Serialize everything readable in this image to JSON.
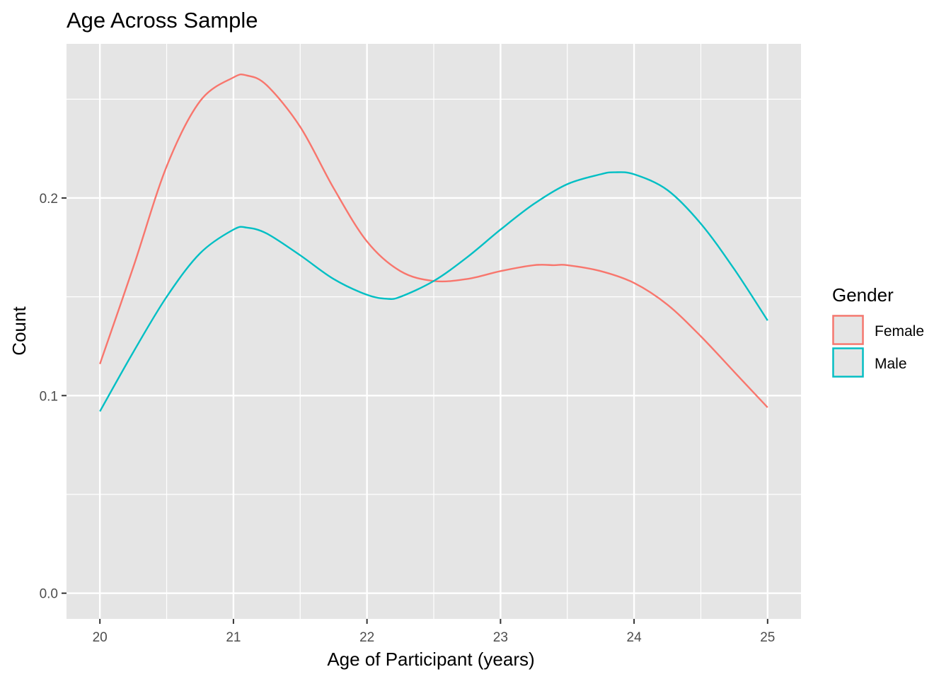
{
  "chart_data": {
    "type": "line",
    "title": "Age Across Sample",
    "xlabel": "Age of Participant (years)",
    "ylabel": "Count",
    "xlim": [
      19.75,
      25.25
    ],
    "ylim": [
      -0.013,
      0.278
    ],
    "x_ticks": [
      20,
      21,
      22,
      23,
      24,
      25
    ],
    "x_tick_labels": [
      "20",
      "21",
      "22",
      "23",
      "24",
      "25"
    ],
    "y_ticks": [
      0.0,
      0.1,
      0.2
    ],
    "y_tick_labels": [
      "0.0",
      "0.1",
      "0.2"
    ],
    "grid": true,
    "panel_background": "#e5e5e5",
    "legend": {
      "title": "Gender",
      "position": "right"
    },
    "series": [
      {
        "name": "Female",
        "color": "#f8766d",
        "x": [
          20.0,
          20.25,
          20.5,
          20.75,
          21.0,
          21.1,
          21.25,
          21.5,
          21.75,
          22.0,
          22.25,
          22.5,
          22.75,
          23.0,
          23.25,
          23.4,
          23.5,
          23.75,
          24.0,
          24.25,
          24.5,
          24.75,
          25.0
        ],
        "values": [
          0.116,
          0.165,
          0.216,
          0.249,
          0.261,
          0.262,
          0.257,
          0.236,
          0.205,
          0.178,
          0.163,
          0.158,
          0.159,
          0.163,
          0.166,
          0.166,
          0.166,
          0.163,
          0.157,
          0.146,
          0.13,
          0.112,
          0.094
        ]
      },
      {
        "name": "Male",
        "color": "#00bfc4",
        "x": [
          20.0,
          20.25,
          20.5,
          20.75,
          21.0,
          21.1,
          21.25,
          21.5,
          21.75,
          22.0,
          22.15,
          22.25,
          22.5,
          22.75,
          23.0,
          23.25,
          23.5,
          23.75,
          23.85,
          24.0,
          24.25,
          24.5,
          24.75,
          25.0
        ],
        "values": [
          0.092,
          0.122,
          0.15,
          0.172,
          0.184,
          0.185,
          0.182,
          0.171,
          0.159,
          0.151,
          0.149,
          0.15,
          0.158,
          0.17,
          0.184,
          0.197,
          0.207,
          0.212,
          0.213,
          0.212,
          0.204,
          0.187,
          0.164,
          0.138
        ]
      }
    ]
  }
}
